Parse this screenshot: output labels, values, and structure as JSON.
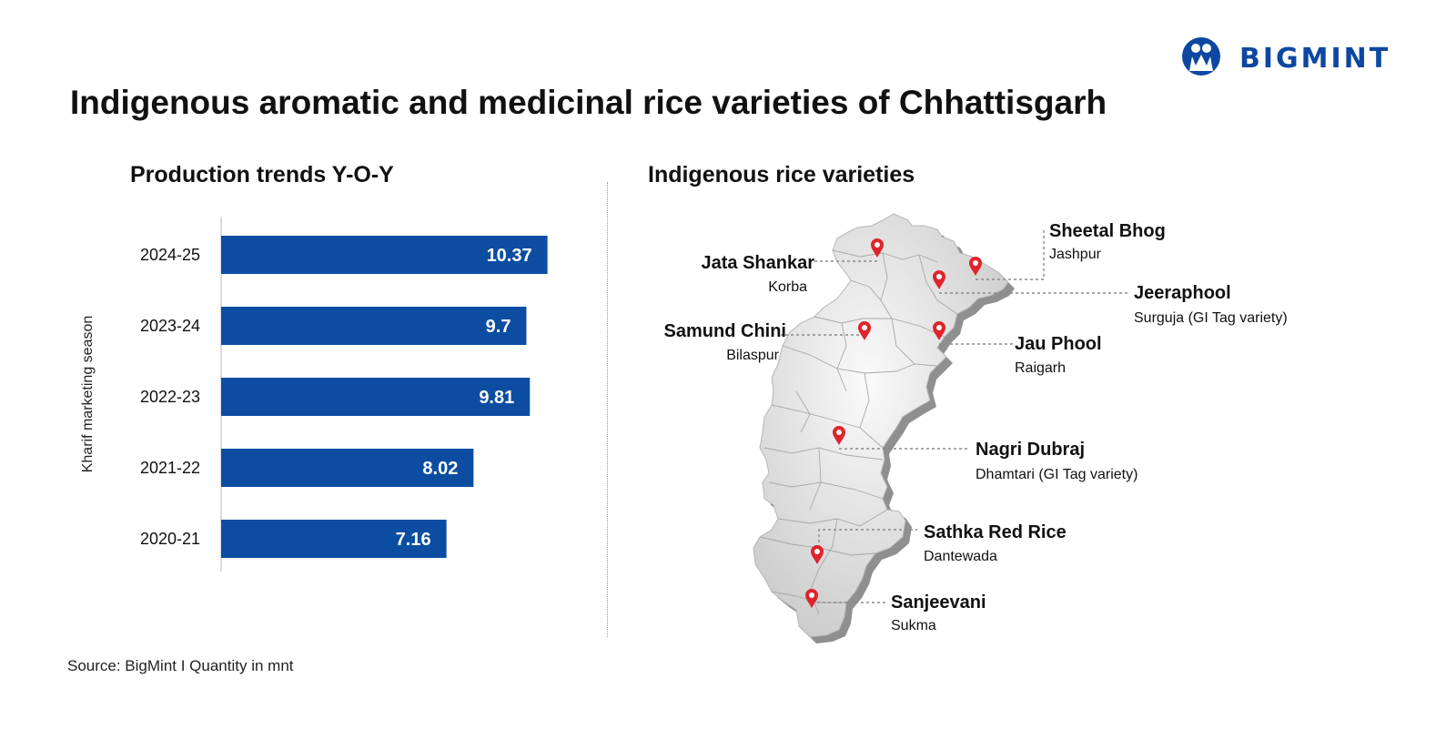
{
  "logo": {
    "text": "BIGMINT",
    "icon": "bigmint-people-icon"
  },
  "title": "Indigenous aromatic and medicinal rice varieties of Chhattisgarh",
  "left_section": {
    "title": "Production trends Y-O-Y"
  },
  "right_section": {
    "title": "Indigenous rice varieties"
  },
  "source": "Source: BigMint I Quantity in mnt",
  "colors": {
    "bar": "#0c4da2",
    "brand": "#0d47a1",
    "pin": "#e0242b",
    "map_fill": "#e6e6e6",
    "map_shadow": "#8f8f8f"
  },
  "chart_data": {
    "type": "bar",
    "orientation": "horizontal",
    "categories": [
      "2024-25",
      "2023-24",
      "2022-23",
      "2021-22",
      "2020-21"
    ],
    "values": [
      10.37,
      9.7,
      9.81,
      8.02,
      7.16
    ],
    "ylabel": "Kharif marketing season",
    "xlim": [
      0,
      12
    ],
    "data_labels": true,
    "grid": false
  },
  "map": {
    "varieties": [
      {
        "name": "Sheetal Bhog",
        "district": "Jashpur"
      },
      {
        "name": "Jata Shankar",
        "district": "Korba"
      },
      {
        "name": "Jeeraphool",
        "district": "Surguja (GI Tag variety)"
      },
      {
        "name": "Samund Chini",
        "district": "Bilaspur"
      },
      {
        "name": "Jau Phool",
        "district": "Raigarh"
      },
      {
        "name": "Nagri Dubraj",
        "district": "Dhamtari (GI Tag variety)"
      },
      {
        "name": "Sathka Red Rice",
        "district": "Dantewada"
      },
      {
        "name": "Sanjeevani",
        "district": "Sukma"
      }
    ]
  }
}
